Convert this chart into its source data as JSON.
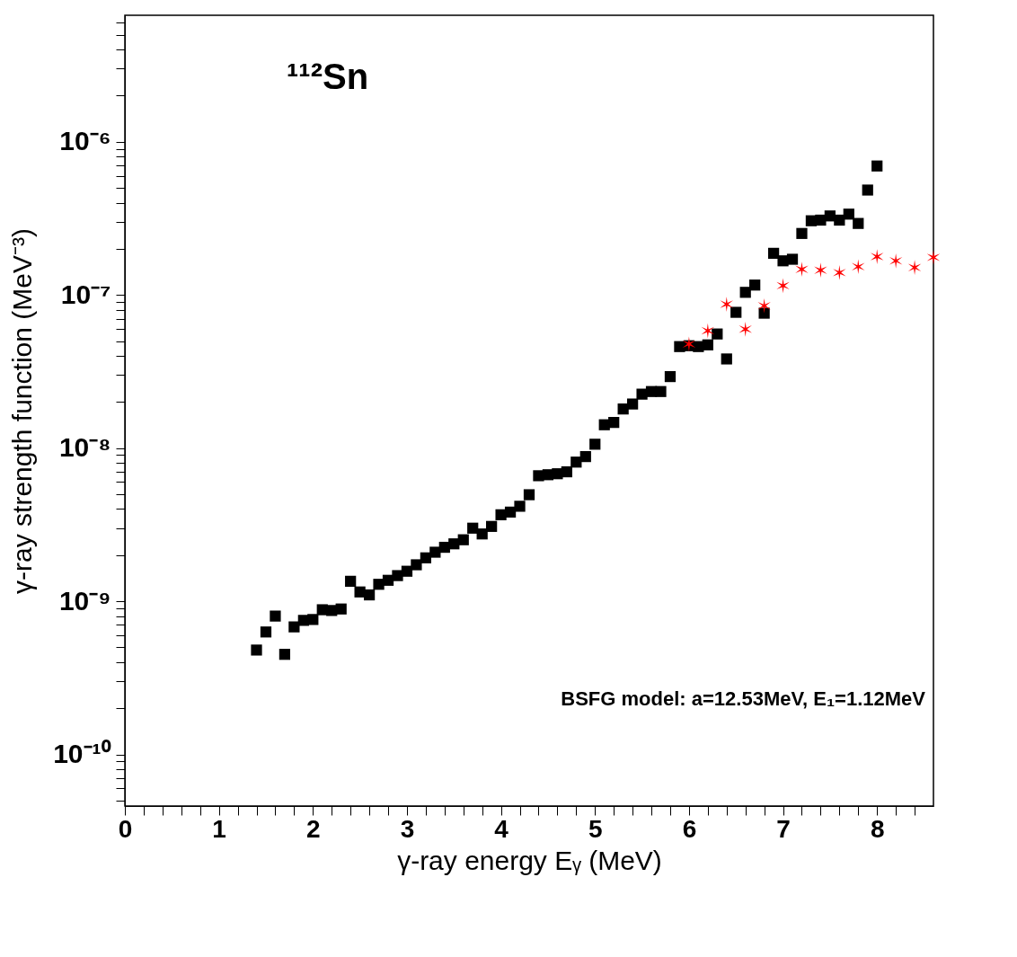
{
  "chart_data": {
    "type": "scatter",
    "xlabel": "γ-ray energy Eᵧ (MeV)",
    "ylabel": "γ-ray strength function (MeV⁻³)",
    "annotations": [
      "¹¹²Sn",
      "BSFG model: a=12.53MeV, E₁=1.12MeV"
    ],
    "log": "y",
    "grid": false,
    "legend": false,
    "xlim": [
      0,
      8.6
    ],
    "xticks": [
      0,
      {
        "value": 0.2,
        "label": null
      },
      {
        "value": 0.4,
        "label": null
      },
      {
        "value": 0.6,
        "label": null
      },
      {
        "value": 0.8,
        "label": null
      },
      1,
      {
        "value": 1.2,
        "label": null
      },
      {
        "value": 1.4,
        "label": null
      },
      {
        "value": 1.6,
        "label": null
      },
      {
        "value": 1.8,
        "label": null
      },
      2,
      {
        "value": 2.2,
        "label": null
      },
      {
        "value": 2.4,
        "label": null
      },
      {
        "value": 2.6,
        "label": null
      },
      {
        "value": 2.8,
        "label": null
      },
      3,
      {
        "value": 3.2,
        "label": null
      },
      {
        "value": 3.4,
        "label": null
      },
      {
        "value": 3.6,
        "label": null
      },
      {
        "value": 3.8,
        "label": null
      },
      4,
      {
        "value": 4.2,
        "label": null
      },
      {
        "value": 4.4,
        "label": null
      },
      {
        "value": 4.6,
        "label": null
      },
      {
        "value": 4.8,
        "label": null
      },
      5,
      {
        "value": 5.2,
        "label": null
      },
      {
        "value": 5.4,
        "label": null
      },
      {
        "value": 5.6,
        "label": null
      },
      {
        "value": 5.8,
        "label": null
      },
      6,
      {
        "value": 6.2,
        "label": null
      },
      {
        "value": 6.4,
        "label": null
      },
      {
        "value": 6.6,
        "label": null
      },
      {
        "value": 6.8,
        "label": null
      },
      7,
      {
        "value": 7.2,
        "label": null
      },
      {
        "value": 7.4,
        "label": null
      },
      {
        "value": 7.6,
        "label": null
      },
      {
        "value": 7.8,
        "label": null
      },
      8,
      {
        "value": 8.2,
        "label": null
      },
      {
        "value": 8.4,
        "label": null
      }
    ],
    "ylim": [
      4.6e-11,
      6.7e-06
    ],
    "yticks": [
      {
        "value": 5e-11,
        "label": null
      },
      {
        "value": 6e-11,
        "label": null
      },
      {
        "value": 7e-11,
        "label": null
      },
      {
        "value": 8e-11,
        "label": null
      },
      {
        "value": 9e-11,
        "label": null
      },
      {
        "value": 1e-10,
        "label": "10⁻¹⁰"
      },
      {
        "value": 2e-10,
        "label": null
      },
      {
        "value": 3e-10,
        "label": null
      },
      {
        "value": 4e-10,
        "label": null
      },
      {
        "value": 5e-10,
        "label": null
      },
      {
        "value": 6e-10,
        "label": null
      },
      {
        "value": 7e-10,
        "label": null
      },
      {
        "value": 8e-10,
        "label": null
      },
      {
        "value": 9e-10,
        "label": null
      },
      {
        "value": 1e-09,
        "label": "10⁻⁹"
      },
      {
        "value": 2e-09,
        "label": null
      },
      {
        "value": 3e-09,
        "label": null
      },
      {
        "value": 4e-09,
        "label": null
      },
      {
        "value": 5e-09,
        "label": null
      },
      {
        "value": 6e-09,
        "label": null
      },
      {
        "value": 7e-09,
        "label": null
      },
      {
        "value": 8e-09,
        "label": null
      },
      {
        "value": 9e-09,
        "label": null
      },
      {
        "value": 1e-08,
        "label": "10⁻⁸"
      },
      {
        "value": 2e-08,
        "label": null
      },
      {
        "value": 3e-08,
        "label": null
      },
      {
        "value": 4e-08,
        "label": null
      },
      {
        "value": 5e-08,
        "label": null
      },
      {
        "value": 6e-08,
        "label": null
      },
      {
        "value": 7e-08,
        "label": null
      },
      {
        "value": 8e-08,
        "label": null
      },
      {
        "value": 9e-08,
        "label": null
      },
      {
        "value": 1e-07,
        "label": "10⁻⁷"
      },
      {
        "value": 2e-07,
        "label": null
      },
      {
        "value": 3e-07,
        "label": null
      },
      {
        "value": 4e-07,
        "label": null
      },
      {
        "value": 5e-07,
        "label": null
      },
      {
        "value": 6e-07,
        "label": null
      },
      {
        "value": 7e-07,
        "label": null
      },
      {
        "value": 8e-07,
        "label": null
      },
      {
        "value": 9e-07,
        "label": null
      },
      {
        "value": 1e-06,
        "label": "10⁻⁶"
      },
      {
        "value": 2e-06,
        "label": null
      },
      {
        "value": 3e-06,
        "label": null
      },
      {
        "value": 4e-06,
        "label": null
      },
      {
        "value": 5e-06,
        "label": null
      },
      {
        "value": 6e-06,
        "label": null
      }
    ],
    "series": [
      {
        "color": "#000000",
        "marker": "square",
        "x": [
          1.4,
          1.5,
          1.6,
          1.7,
          1.8,
          1.9,
          2.0,
          2.1,
          2.2,
          2.3,
          2.4,
          2.5,
          2.6,
          2.7,
          2.8,
          2.9,
          3.0,
          3.1,
          3.2,
          3.3,
          3.4,
          3.5,
          3.6,
          3.7,
          3.8,
          3.9,
          4.0,
          4.1,
          4.2,
          4.3,
          4.4,
          4.5,
          4.6,
          4.7,
          4.8,
          4.9,
          5.0,
          5.1,
          5.2,
          5.3,
          5.4,
          5.5,
          5.6,
          5.7,
          5.8,
          5.9,
          6.0,
          6.1,
          6.2,
          6.3,
          6.4,
          6.5,
          6.6,
          6.7,
          6.8,
          6.9,
          7.0,
          7.1,
          7.2,
          7.3,
          7.4,
          7.5,
          7.6,
          7.7,
          7.8,
          7.9,
          8.0
        ],
        "values": [
          4.8e-10,
          6.3e-10,
          8e-10,
          4.5e-10,
          6.8e-10,
          7.5e-10,
          7.6e-10,
          8.8e-10,
          8.7e-10,
          8.9e-10,
          1.35e-09,
          1.15e-09,
          1.1e-09,
          1.29e-09,
          1.37e-09,
          1.47e-09,
          1.57e-09,
          1.73e-09,
          1.92e-09,
          2.09e-09,
          2.25e-09,
          2.37e-09,
          2.52e-09,
          3e-09,
          2.75e-09,
          3.08e-09,
          3.67e-09,
          3.82e-09,
          4.17e-09,
          4.96e-09,
          6.6e-09,
          6.7e-09,
          6.8e-09,
          7e-09,
          8.1e-09,
          8.8e-09,
          1.06e-08,
          1.42e-08,
          1.47e-08,
          1.8e-08,
          1.94e-08,
          2.25e-08,
          2.34e-08,
          2.34e-08,
          2.93e-08,
          4.6e-08,
          4.66e-08,
          4.6e-08,
          4.72e-08,
          5.56e-08,
          3.82e-08,
          7.7e-08,
          1.04e-07,
          1.16e-07,
          7.6e-08,
          1.87e-07,
          1.67e-07,
          1.71e-07,
          2.52e-07,
          3.05e-07,
          3.08e-07,
          3.28e-07,
          3.08e-07,
          3.37e-07,
          2.93e-07,
          4.84e-07,
          6.95e-07
        ]
      },
      {
        "color": "#ff0000",
        "marker": "cross",
        "x": [
          6.0,
          6.2,
          6.4,
          6.6,
          6.8,
          7.0,
          7.2,
          7.4,
          7.6,
          7.8,
          8.0,
          8.2,
          8.4,
          8.6
        ],
        "values": [
          4.78e-08,
          5.84e-08,
          8.7e-08,
          5.98e-08,
          8.5e-08,
          1.15e-07,
          1.47e-07,
          1.45e-07,
          1.4e-07,
          1.53e-07,
          1.78e-07,
          1.67e-07,
          1.51e-07,
          1.76e-07
        ]
      }
    ]
  }
}
